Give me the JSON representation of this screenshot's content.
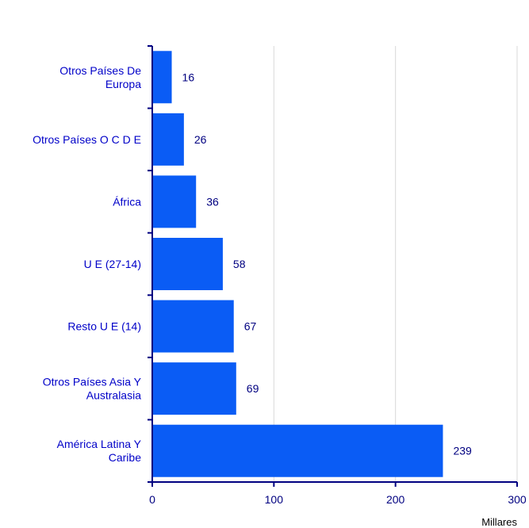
{
  "chart_data": {
    "type": "bar",
    "orientation": "horizontal",
    "categories": [
      "Otros Países De Europa",
      "Otros Países O C D E",
      "África",
      "U E (27-14)",
      "Resto U E (14)",
      "Otros Países Asia Y Australasia",
      "América Latina Y Caribe"
    ],
    "category_lines": [
      [
        "Otros Países De",
        "Europa"
      ],
      [
        "Otros Países O C D E"
      ],
      [
        "África"
      ],
      [
        "U E (27-14)"
      ],
      [
        "Resto U E (14)"
      ],
      [
        "Otros Países Asia Y",
        "Australasia"
      ],
      [
        "América Latina Y",
        "Caribe"
      ]
    ],
    "values": [
      16,
      26,
      36,
      58,
      67,
      69,
      239
    ],
    "value_labels": [
      "16",
      "26",
      "36",
      "58",
      "67",
      "69",
      "239"
    ],
    "xlim": [
      0,
      300
    ],
    "x_ticks": [
      0,
      100,
      200,
      300
    ],
    "x_tick_labels": [
      "0",
      "100",
      "200",
      "300"
    ],
    "x_unit_label": "Millares",
    "grid": "vertical",
    "legend": "none",
    "colors": {
      "bar": "#0a5cf5",
      "axis": "#000080",
      "grid": "#d9d9d9",
      "category_text": "#0000c8",
      "value_text": "#000080"
    }
  }
}
